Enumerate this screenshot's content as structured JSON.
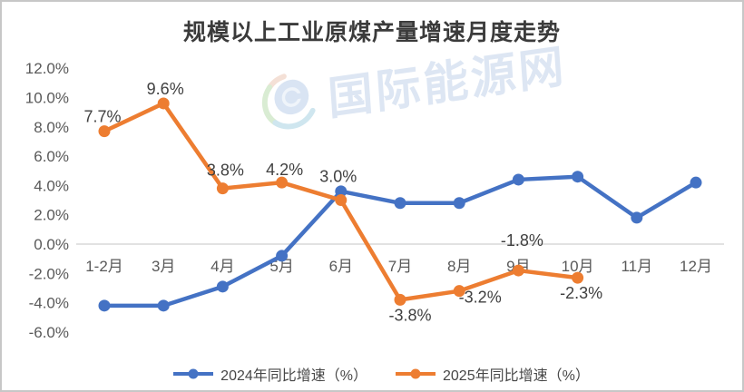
{
  "title": "规模以上工业原煤产量增速月度走势",
  "watermark": {
    "text": "国际能源网"
  },
  "colors": {
    "blue": "#4472C4",
    "orange": "#ED7D31",
    "grid": "#D9D9D9",
    "axis_text": "#595959",
    "label_text": "#404040",
    "title_text": "#3B3B3B",
    "watermark_text": "#DDE6F3"
  },
  "chart_data": {
    "type": "line",
    "title": "规模以上工业原煤产量增速月度走势",
    "categories": [
      "1-2月",
      "3月",
      "4月",
      "5月",
      "6月",
      "7月",
      "8月",
      "9月",
      "10月",
      "11月",
      "12月"
    ],
    "ylim": [
      -6,
      12
    ],
    "grid": "zero-line-only",
    "legend_position": "bottom",
    "y_ticks": [
      {
        "value": 12,
        "label": "12.0%"
      },
      {
        "value": 10,
        "label": "10.0%"
      },
      {
        "value": 8,
        "label": "8.0%"
      },
      {
        "value": 6,
        "label": "6.0%"
      },
      {
        "value": 4,
        "label": "4.0%"
      },
      {
        "value": 2,
        "label": "2.0%"
      },
      {
        "value": 0,
        "label": "0.0%"
      },
      {
        "value": -2,
        "label": "-2.0%"
      },
      {
        "value": -4,
        "label": "-4.0%"
      },
      {
        "value": -6,
        "label": "-6.0%"
      }
    ],
    "series": [
      {
        "name": "2024年同比增速（%）",
        "color": "#4472C4",
        "values": [
          -4.2,
          -4.2,
          -2.9,
          -0.8,
          3.6,
          2.8,
          2.8,
          4.4,
          4.6,
          1.8,
          4.2
        ],
        "labels": []
      },
      {
        "name": "2025年同比增速（%）",
        "color": "#ED7D31",
        "values": [
          7.7,
          9.6,
          3.8,
          4.2,
          3.0,
          -3.8,
          -3.2,
          -1.8,
          -2.3,
          null,
          null
        ],
        "labels": [
          {
            "text": "7.7%",
            "dx": -2,
            "dy": -16
          },
          {
            "text": "9.6%",
            "dx": 2,
            "dy": -16
          },
          {
            "text": "3.8%",
            "dx": 3,
            "dy": -20
          },
          {
            "text": "4.2%",
            "dx": 3,
            "dy": -14
          },
          {
            "text": "3.0%",
            "dx": -3,
            "dy": -26
          },
          {
            "text": "-3.8%",
            "dx": 11,
            "dy": 17
          },
          {
            "text": "-3.2%",
            "dx": 23,
            "dy": 7
          },
          {
            "text": "-1.8%",
            "dx": 4,
            "dy": -33
          },
          {
            "text": "-2.3%",
            "dx": 4,
            "dy": 17
          }
        ]
      }
    ]
  }
}
